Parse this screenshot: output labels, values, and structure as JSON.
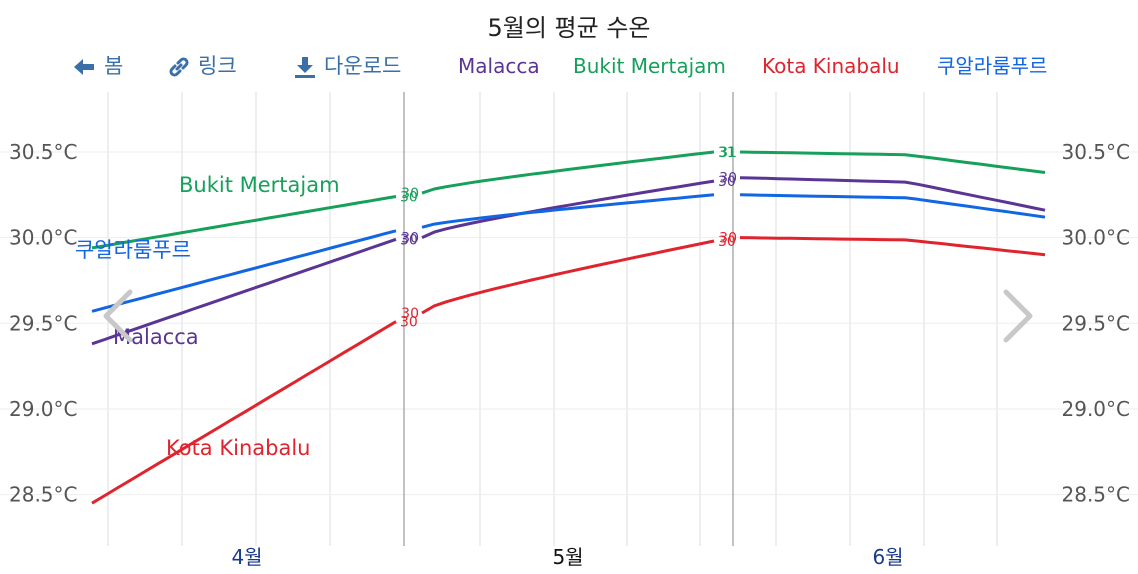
{
  "title": "5월의 평균 수온",
  "toolbar": {
    "back_label": "봄",
    "link_label": "링크",
    "download_label": "다운로드"
  },
  "colors": {
    "Malacca": "#5a3593",
    "Bukit Mertajam": "#16a05a",
    "Kota Kinabalu": "#e0242e",
    "쿠알라룸푸르": "#1266e3",
    "toolbar": "#3a6fa8",
    "month_label": "#1a3a8c",
    "current_month_label": "#111111",
    "grid": "#dddddd",
    "separator": "#999999"
  },
  "icons": {
    "back": "arrow-left-icon",
    "link": "link-icon",
    "download": "download-icon",
    "prev": "chevron-left-icon",
    "next": "chevron-right-icon"
  },
  "chart_data": {
    "type": "line",
    "title": "5월의 평균 수온",
    "unit": "°C",
    "ylim": [
      28.2,
      30.85
    ],
    "y_ticks": [
      "30.5°C",
      "30.0°C",
      "29.5°C",
      "29.0°C",
      "28.5°C"
    ],
    "y_tick_values": [
      30.5,
      30.0,
      29.5,
      29.0,
      28.5
    ],
    "grid": true,
    "legend_position": "top",
    "x_periods": [
      "4월",
      "5월",
      "6월"
    ],
    "current_period": "5월",
    "series": [
      {
        "name": "Malacca",
        "periods": [
          {
            "start": 29.38,
            "end": 29.99,
            "start_label": "",
            "end_label": "30"
          },
          {
            "start": 30.0,
            "end": 30.33,
            "start_label": "30",
            "end_label": "30"
          },
          {
            "start": 30.35,
            "end": 30.16,
            "start_label": "30",
            "end_label": ""
          }
        ]
      },
      {
        "name": "Bukit Mertajam",
        "periods": [
          {
            "start": 29.94,
            "end": 30.24,
            "start_label": "",
            "end_label": "30"
          },
          {
            "start": 30.26,
            "end": 30.5,
            "start_label": "30",
            "end_label": "31"
          },
          {
            "start": 30.5,
            "end": 30.38,
            "start_label": "31",
            "end_label": ""
          }
        ]
      },
      {
        "name": "Kota Kinabalu",
        "periods": [
          {
            "start": 28.45,
            "end": 29.51,
            "start_label": "",
            "end_label": "30"
          },
          {
            "start": 29.56,
            "end": 29.98,
            "start_label": "30",
            "end_label": "30"
          },
          {
            "start": 30.0,
            "end": 29.9,
            "start_label": "30",
            "end_label": ""
          }
        ]
      },
      {
        "name": "쿠알라룸푸르",
        "periods": [
          {
            "start": 29.57,
            "end": 30.04,
            "start_label": "",
            "end_label": ""
          },
          {
            "start": 30.06,
            "end": 30.25,
            "start_label": "",
            "end_label": ""
          },
          {
            "start": 30.25,
            "end": 30.12,
            "start_label": "",
            "end_label": ""
          }
        ]
      }
    ],
    "inline_labels": [
      "Bukit Mertajam",
      "쿠알라룸푸르",
      "Malacca",
      "Kota Kinabalu"
    ]
  }
}
